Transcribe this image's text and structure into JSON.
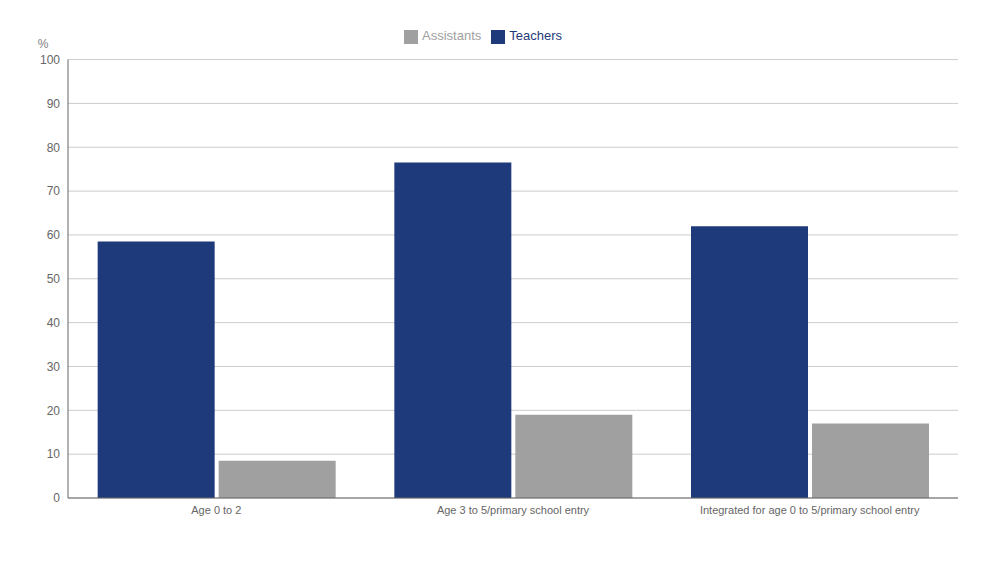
{
  "chart_data": {
    "type": "bar",
    "y_label": "%",
    "categories": [
      "Age 0 to 2",
      "Age 3 to 5/primary school entry",
      "Integrated for age 0 to 5/primary school entry"
    ],
    "series": [
      {
        "name": "Teachers",
        "color": "#1F3A7A",
        "values": [
          58.5,
          76.5,
          62.0
        ]
      },
      {
        "name": "Assistants",
        "color": "#A0A0A0",
        "values": [
          8.5,
          19.0,
          17.0
        ]
      }
    ],
    "ylim": [
      0,
      100
    ],
    "yticks": [
      0,
      10,
      20,
      30,
      40,
      50,
      60,
      70,
      80,
      90,
      100
    ],
    "grid": true,
    "legend": "top"
  }
}
